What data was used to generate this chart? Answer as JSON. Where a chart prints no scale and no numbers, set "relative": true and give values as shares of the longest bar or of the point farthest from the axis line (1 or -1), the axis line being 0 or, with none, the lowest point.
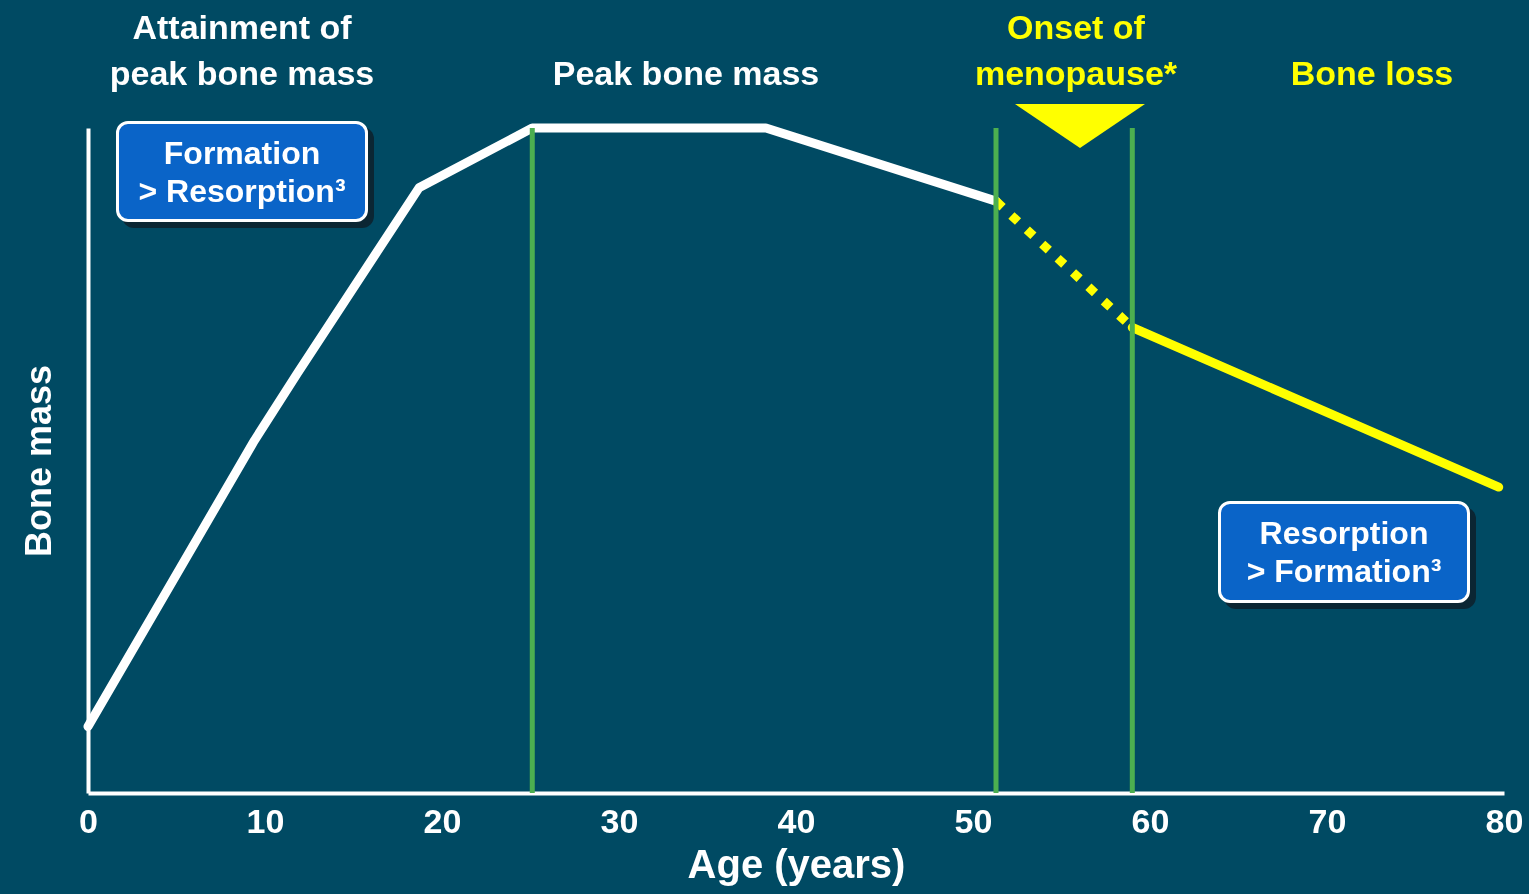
{
  "chart_data": {
    "type": "line",
    "relative": true,
    "xlabel": "Age (years)",
    "ylabel": "Bone mass",
    "xlim": [
      0,
      80
    ],
    "xticks": [
      0,
      10,
      20,
      30,
      40,
      50,
      60,
      70,
      80
    ],
    "grid": false,
    "marker": "none",
    "series": [
      {
        "color": "#ffffff",
        "line_style": "solid",
        "x": [
          0,
          9.4,
          11.8,
          18.7,
          25.1,
          38.3,
          51.3
        ],
        "values": [
          0.1,
          0.53,
          0.63,
          0.91,
          1,
          1,
          0.89
        ]
      },
      {
        "color": "#ffff00",
        "line_style": "dotted",
        "x": [
          51.3,
          59
        ],
        "values": [
          0.89,
          0.7
        ]
      },
      {
        "color": "#ffff00",
        "line_style": "solid",
        "x": [
          59,
          79.7
        ],
        "values": [
          0.7,
          0.46
        ]
      }
    ],
    "ref_lines": [
      {
        "axis": "x",
        "value": 25.1,
        "color": "#4caf50"
      },
      {
        "axis": "x",
        "value": 51.3,
        "color": "#4caf50"
      },
      {
        "axis": "x",
        "value": 59,
        "color": "#4caf50"
      }
    ],
    "annotations": [
      "Attainment of\npeak bone mass",
      "Peak bone mass",
      "Onset of\nmenopause*",
      "Bone loss",
      "Formation\n> Resorption³",
      "Resorption\n> Formation³"
    ]
  }
}
